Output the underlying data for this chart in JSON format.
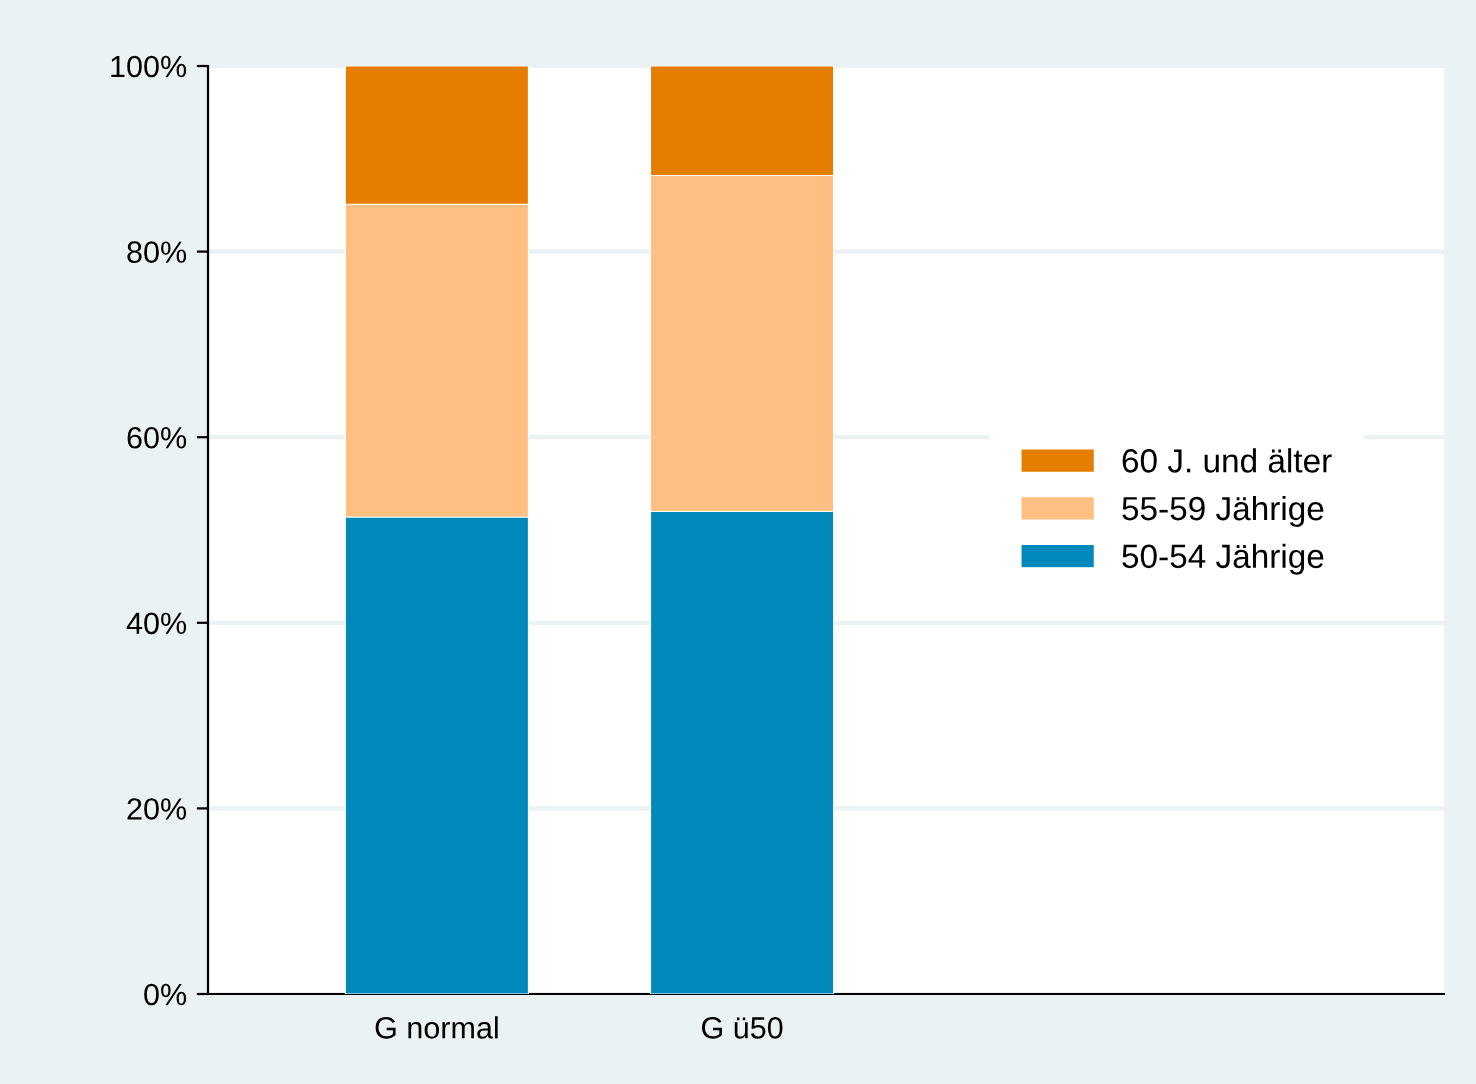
{
  "chart_data": {
    "type": "bar",
    "stacked": true,
    "categories": [
      "G normal",
      "G ü50"
    ],
    "series": [
      {
        "name": "50-54 Jährige",
        "color": "#0189bc",
        "values": [
          51.4,
          52.0
        ]
      },
      {
        "name": "55-59 Jährige",
        "color": "#ffbe82",
        "values": [
          33.7,
          36.2
        ]
      },
      {
        "name": "60 J. und älter",
        "color": "#e57e00",
        "values": [
          14.9,
          11.8
        ]
      }
    ],
    "ylim": [
      0,
      100
    ],
    "yticks": [
      {
        "value": 0,
        "label": "0%"
      },
      {
        "value": 20,
        "label": "20%"
      },
      {
        "value": 40,
        "label": "40%"
      },
      {
        "value": 60,
        "label": "60%"
      },
      {
        "value": 80,
        "label": "80%"
      },
      {
        "value": 100,
        "label": "100%"
      }
    ],
    "grid": "y",
    "legend": "right"
  }
}
